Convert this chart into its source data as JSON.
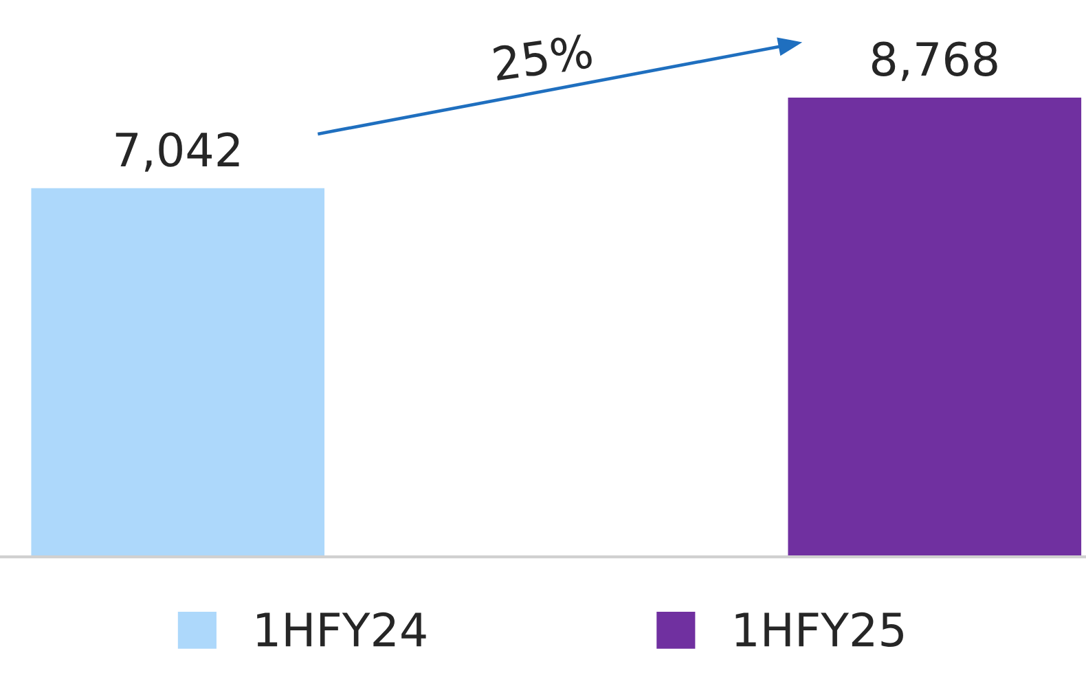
{
  "chart_data": {
    "type": "bar",
    "categories": [
      null,
      null
    ],
    "stacked": true,
    "series": [
      {
        "name": "1HFY24",
        "color": "#add8fb",
        "values": [
          7042,
          null
        ],
        "value_labels": [
          "7,042",
          null
        ]
      },
      {
        "name": "1HFY25",
        "color": "#7030a0",
        "values": [
          null,
          8768
        ],
        "value_labels": [
          null,
          "8,768"
        ]
      }
    ],
    "legend": "bottom",
    "annotations": [
      "25%"
    ]
  }
}
